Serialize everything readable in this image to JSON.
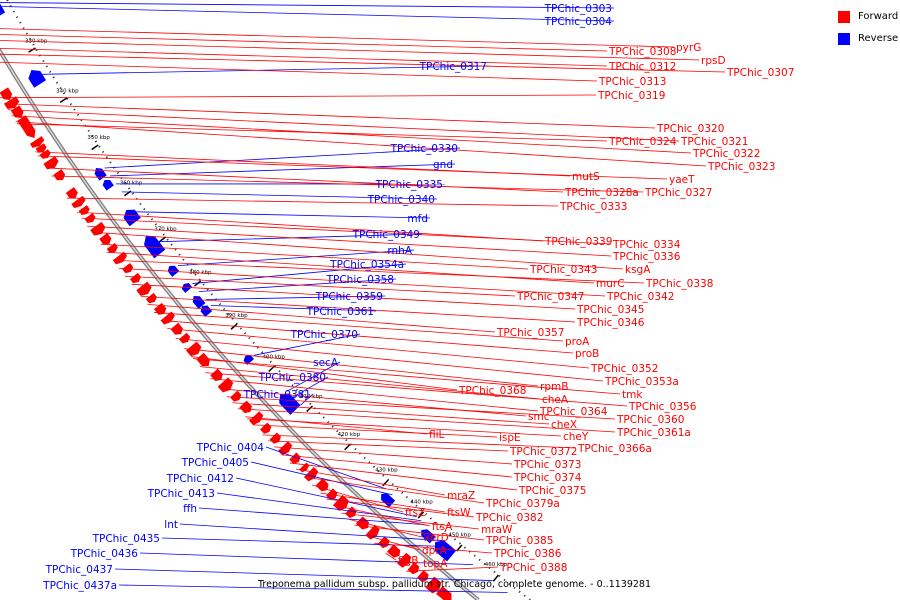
{
  "colors": {
    "forward": "#ff0000",
    "reverse": "#0000ff",
    "backbone": "#808080",
    "tick": "#000000"
  },
  "legend": [
    {
      "label": "Forward",
      "color": "#ff0000"
    },
    {
      "label": "Reverse",
      "color": "#0000ff"
    }
  ],
  "caption": "Treponema pallidum subsp. pallidum str. Chicago, complete genome. - 0..1139281",
  "scale_labels": [
    "330 kbp",
    "340 kbp",
    "350 kbp",
    "360 kbp",
    "370 kbp",
    "380 kbp",
    "390 kbp",
    "400 kbp",
    "410 kbp",
    "420 kbp",
    "430 kbp",
    "440 kbp",
    "450 kbp",
    "460 kbp"
  ],
  "reverse_labels": [
    "TPChic_0303",
    "TPChic_0304",
    "TPChic_0317",
    "TPChic_0330",
    "gnd",
    "TPChic_0335",
    "TPChic_0340",
    "mfd",
    "TPChic_0349",
    "rnhA",
    "TPChic_0354a",
    "TPChic_0358",
    "TPChic_0359",
    "TPChic_0361",
    "TPChic_0370",
    "secA",
    "TPChic_0380",
    "TPChic_0381",
    "TPChic_0404",
    "TPChic_0405",
    "TPChic_0412",
    "TPChic_0413",
    "ffh",
    "lnt",
    "TPChic_0435",
    "TPChic_0436",
    "TPChic_0437",
    "TPChic_0437a"
  ],
  "forward_labels": [
    "pyrG",
    "TPChic_0308",
    "rpsD",
    "TPChic_0312",
    "TPChic_0307",
    "TPChic_0313",
    "TPChic_0319",
    "TPChic_0320",
    "TPChic_0321",
    "TPChic_0324",
    "TPChic_0322",
    "TPChic_0323",
    "mutS",
    "yaeT",
    "TPChic_0328a",
    "TPChic_0327",
    "TPChic_0333",
    "TPChic_0339",
    "TPChic_0334",
    "TPChic_0336",
    "ksgA",
    "TPChic_0343",
    "murC",
    "TPChic_0338",
    "TPChic_0342",
    "TPChic_0347",
    "TPChic_0345",
    "TPChic_0346",
    "TPChic_0357",
    "proA",
    "proB",
    "TPChic_0352",
    "TPChic_0353a",
    "rpmB",
    "tmk",
    "TPChic_0368",
    "cheA",
    "TPChic_0356",
    "TPChic_0364",
    "smc",
    "TPChic_0360",
    "cheX",
    "TPChic_0361a",
    "fliL",
    "cheY",
    "ispE",
    "TPChic_0366a",
    "TPChic_0372",
    "TPChic_0373",
    "TPChic_0374",
    "TPChic_0375",
    "mraZ",
    "TPChic_0379a",
    "ftsZ",
    "ftsW",
    "TPChic_0382",
    "ftsA",
    "mraW",
    "xerD",
    "TPChic_0385",
    "dprA",
    "TPChic_0386",
    "flgB",
    "topA",
    "TPChic_0388"
  ]
}
